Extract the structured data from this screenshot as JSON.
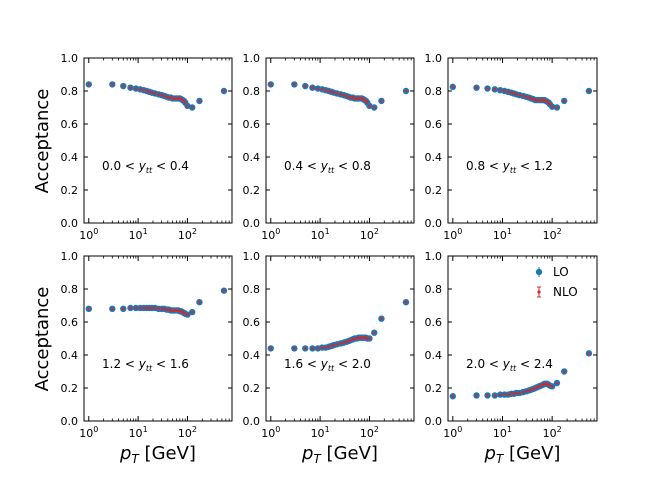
{
  "figure": {
    "ylabel": "Acceptance",
    "xlabel_base": "p",
    "xlabel_sub": "T",
    "xlabel_unit": " [GeV]",
    "y_ticks": [
      "0.0",
      "0.2",
      "0.4",
      "0.6",
      "0.8",
      "1.0"
    ],
    "x_tick_base": "10",
    "x_tick_exps": [
      "0",
      "1",
      "2"
    ],
    "legend": {
      "lo": "LO",
      "nlo": "NLO"
    },
    "colors": {
      "lo": "#1f77b4",
      "nlo": "#d62728"
    },
    "panel_label_parts": {
      "lt": " < ",
      "y": "y",
      "sub": "tt"
    }
  },
  "chart_data": [
    {
      "type": "scatter",
      "title": "0.0 < y_tt < 0.4",
      "range_low": "0.0",
      "range_high": "0.4",
      "xscale": "log",
      "xlim": [
        0.8,
        800
      ],
      "ylim": [
        0.0,
        1.0
      ],
      "x": [
        1,
        3,
        5,
        7,
        9,
        11,
        13,
        15,
        17,
        19,
        22,
        26,
        30,
        34,
        38,
        42,
        46,
        50,
        55,
        60,
        65,
        70,
        75,
        80,
        85,
        90,
        100,
        125,
        175,
        550
      ],
      "series": [
        {
          "name": "LO",
          "values": [
            0.84,
            0.84,
            0.83,
            0.82,
            0.815,
            0.81,
            0.805,
            0.8,
            0.795,
            0.79,
            0.785,
            0.78,
            0.775,
            0.77,
            0.765,
            0.76,
            0.76,
            0.755,
            0.755,
            0.755,
            0.755,
            0.755,
            0.75,
            0.745,
            0.74,
            0.73,
            0.71,
            0.7,
            0.74,
            0.8
          ]
        },
        {
          "name": "NLO",
          "values": [
            0.84,
            0.84,
            0.83,
            0.82,
            0.815,
            0.81,
            0.805,
            0.8,
            0.795,
            0.79,
            0.785,
            0.78,
            0.775,
            0.77,
            0.765,
            0.76,
            0.76,
            0.755,
            0.755,
            0.755,
            0.755,
            0.755,
            0.75,
            0.745,
            0.74,
            0.73,
            0.71,
            0.7,
            0.74,
            0.8
          ]
        }
      ]
    },
    {
      "type": "scatter",
      "title": "0.4 < y_tt < 0.8",
      "range_low": "0.4",
      "range_high": "0.8",
      "xscale": "log",
      "xlim": [
        0.8,
        800
      ],
      "ylim": [
        0.0,
        1.0
      ],
      "x": [
        1,
        3,
        5,
        7,
        9,
        11,
        13,
        15,
        17,
        19,
        22,
        26,
        30,
        34,
        38,
        42,
        46,
        50,
        55,
        60,
        65,
        70,
        75,
        80,
        85,
        90,
        100,
        125,
        175,
        550
      ],
      "series": [
        {
          "name": "LO",
          "values": [
            0.84,
            0.84,
            0.83,
            0.82,
            0.815,
            0.81,
            0.805,
            0.8,
            0.795,
            0.79,
            0.785,
            0.78,
            0.775,
            0.77,
            0.765,
            0.76,
            0.76,
            0.755,
            0.755,
            0.755,
            0.755,
            0.755,
            0.75,
            0.745,
            0.74,
            0.73,
            0.71,
            0.7,
            0.74,
            0.8
          ]
        },
        {
          "name": "NLO",
          "values": [
            0.84,
            0.84,
            0.83,
            0.82,
            0.815,
            0.81,
            0.805,
            0.8,
            0.795,
            0.79,
            0.785,
            0.78,
            0.775,
            0.77,
            0.765,
            0.76,
            0.76,
            0.755,
            0.755,
            0.755,
            0.755,
            0.755,
            0.75,
            0.745,
            0.74,
            0.73,
            0.71,
            0.7,
            0.74,
            0.8
          ]
        }
      ]
    },
    {
      "type": "scatter",
      "title": "0.8 < y_tt < 1.2",
      "range_low": "0.8",
      "range_high": "1.2",
      "xscale": "log",
      "xlim": [
        0.8,
        800
      ],
      "ylim": [
        0.0,
        1.0
      ],
      "x": [
        1,
        3,
        5,
        7,
        9,
        11,
        13,
        15,
        17,
        19,
        22,
        26,
        30,
        34,
        38,
        42,
        46,
        50,
        55,
        60,
        65,
        70,
        75,
        80,
        85,
        90,
        100,
        125,
        175,
        550
      ],
      "series": [
        {
          "name": "LO",
          "values": [
            0.825,
            0.82,
            0.815,
            0.81,
            0.805,
            0.8,
            0.795,
            0.79,
            0.785,
            0.78,
            0.775,
            0.77,
            0.765,
            0.76,
            0.755,
            0.75,
            0.745,
            0.745,
            0.745,
            0.745,
            0.745,
            0.745,
            0.74,
            0.735,
            0.73,
            0.72,
            0.705,
            0.7,
            0.74,
            0.8
          ]
        },
        {
          "name": "NLO",
          "values": [
            0.825,
            0.82,
            0.815,
            0.81,
            0.805,
            0.8,
            0.795,
            0.79,
            0.785,
            0.78,
            0.775,
            0.77,
            0.765,
            0.76,
            0.755,
            0.75,
            0.745,
            0.745,
            0.745,
            0.745,
            0.745,
            0.745,
            0.74,
            0.735,
            0.73,
            0.72,
            0.705,
            0.7,
            0.74,
            0.8
          ]
        }
      ]
    },
    {
      "type": "scatter",
      "title": "1.2 < y_tt < 1.6",
      "range_low": "1.2",
      "range_high": "1.6",
      "xscale": "log",
      "xlim": [
        0.8,
        800
      ],
      "ylim": [
        0.0,
        1.0
      ],
      "x": [
        1,
        3,
        5,
        7,
        9,
        11,
        13,
        15,
        17,
        19,
        22,
        26,
        30,
        34,
        38,
        42,
        46,
        50,
        55,
        60,
        65,
        70,
        75,
        80,
        85,
        90,
        100,
        125,
        175,
        550
      ],
      "series": [
        {
          "name": "LO",
          "values": [
            0.68,
            0.68,
            0.68,
            0.685,
            0.685,
            0.685,
            0.685,
            0.685,
            0.685,
            0.685,
            0.685,
            0.68,
            0.68,
            0.68,
            0.675,
            0.675,
            0.67,
            0.67,
            0.67,
            0.67,
            0.67,
            0.665,
            0.665,
            0.66,
            0.655,
            0.65,
            0.645,
            0.66,
            0.72,
            0.79
          ]
        },
        {
          "name": "NLO",
          "values": [
            0.68,
            0.68,
            0.68,
            0.685,
            0.685,
            0.685,
            0.685,
            0.685,
            0.685,
            0.685,
            0.685,
            0.68,
            0.68,
            0.68,
            0.675,
            0.675,
            0.67,
            0.67,
            0.67,
            0.67,
            0.67,
            0.665,
            0.665,
            0.66,
            0.655,
            0.65,
            0.645,
            0.66,
            0.72,
            0.79
          ]
        }
      ]
    },
    {
      "type": "scatter",
      "title": "1.6 < y_tt < 2.0",
      "range_low": "1.6",
      "range_high": "2.0",
      "xscale": "log",
      "xlim": [
        0.8,
        800
      ],
      "ylim": [
        0.0,
        1.0
      ],
      "x": [
        1,
        3,
        5,
        7,
        9,
        11,
        13,
        15,
        17,
        19,
        22,
        26,
        30,
        34,
        38,
        42,
        46,
        50,
        55,
        60,
        65,
        70,
        75,
        80,
        85,
        90,
        100,
        125,
        175,
        550
      ],
      "series": [
        {
          "name": "LO",
          "values": [
            0.44,
            0.44,
            0.44,
            0.44,
            0.44,
            0.445,
            0.445,
            0.45,
            0.455,
            0.46,
            0.465,
            0.47,
            0.475,
            0.48,
            0.485,
            0.49,
            0.495,
            0.5,
            0.5,
            0.505,
            0.505,
            0.505,
            0.505,
            0.505,
            0.505,
            0.5,
            0.5,
            0.535,
            0.62,
            0.72
          ]
        },
        {
          "name": "NLO",
          "values": [
            0.44,
            0.44,
            0.44,
            0.44,
            0.44,
            0.445,
            0.445,
            0.45,
            0.455,
            0.46,
            0.465,
            0.47,
            0.475,
            0.48,
            0.485,
            0.49,
            0.495,
            0.5,
            0.5,
            0.505,
            0.505,
            0.505,
            0.505,
            0.505,
            0.505,
            0.5,
            0.5,
            0.535,
            0.62,
            0.72
          ]
        }
      ]
    },
    {
      "type": "scatter",
      "title": "2.0 < y_tt < 2.4",
      "range_low": "2.0",
      "range_high": "2.4",
      "xscale": "log",
      "xlim": [
        0.8,
        800
      ],
      "ylim": [
        0.0,
        1.0
      ],
      "x": [
        1,
        3,
        5,
        7,
        9,
        11,
        13,
        15,
        17,
        19,
        22,
        26,
        30,
        34,
        38,
        42,
        46,
        50,
        55,
        60,
        65,
        70,
        75,
        80,
        85,
        90,
        100,
        125,
        175,
        550
      ],
      "legend": [
        "LO",
        "NLO"
      ],
      "legend_loc": "top-right",
      "series": [
        {
          "name": "LO",
          "values": [
            0.15,
            0.155,
            0.155,
            0.155,
            0.16,
            0.16,
            0.16,
            0.165,
            0.165,
            0.17,
            0.17,
            0.175,
            0.18,
            0.185,
            0.19,
            0.195,
            0.2,
            0.205,
            0.21,
            0.215,
            0.22,
            0.225,
            0.225,
            0.225,
            0.22,
            0.215,
            0.21,
            0.23,
            0.3,
            0.41
          ]
        },
        {
          "name": "NLO",
          "values": [
            0.15,
            0.155,
            0.155,
            0.155,
            0.16,
            0.16,
            0.16,
            0.165,
            0.165,
            0.17,
            0.17,
            0.175,
            0.18,
            0.185,
            0.19,
            0.195,
            0.2,
            0.205,
            0.21,
            0.215,
            0.22,
            0.225,
            0.225,
            0.225,
            0.22,
            0.215,
            0.21,
            0.23,
            0.3,
            0.41
          ]
        }
      ]
    }
  ]
}
